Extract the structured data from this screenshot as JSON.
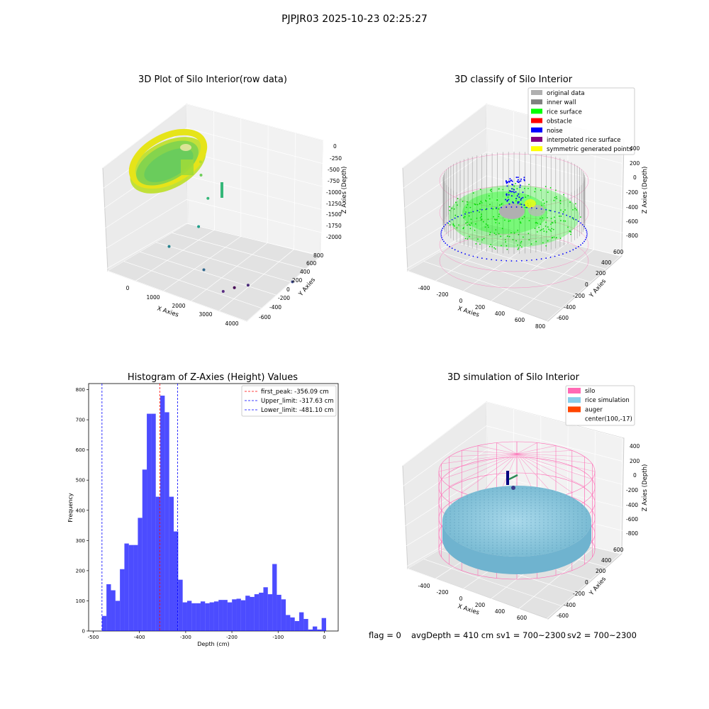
{
  "suptitle": "PJPJR03 2025-10-23 02:25:27",
  "footer": {
    "flag": "flag = 0",
    "avg": "avgDepth = 410 cm",
    "sv1": "sv1 = 700~2300",
    "sv2": "sv2 = 700~2300"
  },
  "chart_data": [
    {
      "type": "scatter",
      "projection": "3d",
      "title": "3D Plot of Silo Interior(row data)",
      "xlabel": "X Axies",
      "ylabel": "Y Axies",
      "zlabel": "Z Axies (Depth)",
      "xticks": [
        "0",
        "1000",
        "2000",
        "3000",
        "4000"
      ],
      "yticks": [
        "-600",
        "-400",
        "-200",
        "0",
        "200",
        "400",
        "600",
        "800"
      ],
      "zticks": [
        "0",
        "-250",
        "-500",
        "-750",
        "-1000",
        "-1250",
        "-1500",
        "-1750",
        "-2000"
      ],
      "xlim": [
        -600,
        4200
      ],
      "ylim": [
        -700,
        900
      ],
      "zlim": [
        -2100,
        100
      ],
      "colormap": "viridis",
      "outlier_points": [
        {
          "x": 1050,
          "y": 200,
          "z": -250
        },
        {
          "x": 1150,
          "y": 150,
          "z": -450
        },
        {
          "x": 1650,
          "y": 0,
          "z": -700
        },
        {
          "x": 1500,
          "y": -100,
          "z": -1200
        },
        {
          "x": 1000,
          "y": -400,
          "z": -1500
        },
        {
          "x": 2200,
          "y": -400,
          "z": -1700
        },
        {
          "x": 4050,
          "y": 300,
          "z": -1950
        },
        {
          "x": 3900,
          "y": -500,
          "z": -1600
        },
        {
          "x": 3600,
          "y": -600,
          "z": -1650
        },
        {
          "x": 3300,
          "y": -650,
          "z": -1750
        }
      ]
    },
    {
      "type": "scatter",
      "projection": "3d",
      "title": "3D classify of Silo Interior",
      "xlabel": "X Axies",
      "ylabel": "Y Axies",
      "zlabel": "Z Axies (Depth)",
      "xticks": [
        "-400",
        "-200",
        "0",
        "200",
        "400",
        "600",
        "800"
      ],
      "yticks": [
        "-600",
        "-400",
        "-200",
        "0",
        "200",
        "400",
        "600"
      ],
      "zticks": [
        "400",
        "200",
        "0",
        "-200",
        "-400",
        "-600",
        "-800"
      ],
      "legend": [
        {
          "label": "original data",
          "color": "#b0b0b0"
        },
        {
          "label": "inner wall",
          "color": "#808080"
        },
        {
          "label": "rice surface",
          "color": "#00ff00"
        },
        {
          "label": "obstacle",
          "color": "#ff0000"
        },
        {
          "label": "noise",
          "color": "#0000ff"
        },
        {
          "label": "interpolated rice surface",
          "color": "#800080"
        },
        {
          "label": "symmetric generated points",
          "color": "#ffff00"
        }
      ],
      "legend_location": "upper right"
    },
    {
      "type": "bar",
      "title": "Histogram of Z-Axies (Height) Values",
      "xlabel": "Depth (cm)",
      "ylabel": "Frequency",
      "xlim": [
        -510,
        30
      ],
      "ylim": [
        0,
        820
      ],
      "xticks": [
        -500,
        -400,
        -300,
        -200,
        -100,
        0
      ],
      "yticks": [
        0,
        100,
        200,
        300,
        400,
        500,
        600,
        700,
        800
      ],
      "bin_start": -481.1,
      "bin_width": 9.7,
      "bar_color": "#0000ff",
      "bar_alpha": 0.7,
      "values": [
        50,
        155,
        135,
        100,
        205,
        290,
        285,
        285,
        375,
        535,
        720,
        720,
        445,
        780,
        725,
        445,
        330,
        170,
        95,
        100,
        92,
        92,
        98,
        92,
        95,
        98,
        103,
        103,
        95,
        105,
        107,
        102,
        117,
        113,
        122,
        127,
        145,
        122,
        222,
        120,
        105,
        53,
        45,
        33,
        62,
        40,
        5,
        15,
        5,
        43
      ],
      "vlines": [
        {
          "label": "first_peak: -356.09 cm",
          "x": -356.09,
          "color": "#ff0000"
        },
        {
          "label": "Upper_limit: -317.63 cm",
          "x": -317.63,
          "color": "#0000ff"
        },
        {
          "label": "Lower_limit: -481.10 cm",
          "x": -481.1,
          "color": "#0000ff"
        }
      ],
      "legend_location": "upper right"
    },
    {
      "type": "scatter",
      "projection": "3d",
      "title": "3D simulation of Silo Interior",
      "xlabel": "X Axies",
      "ylabel": "Y Axies",
      "zlabel": "Z Axies (Depth)",
      "xticks": [
        "-400",
        "-200",
        "0",
        "200",
        "400",
        "600"
      ],
      "yticks": [
        "-600",
        "-400",
        "-200",
        "0",
        "200",
        "400",
        "600"
      ],
      "zticks": [
        "400",
        "200",
        "0",
        "-200",
        "-400",
        "-600",
        "-800"
      ],
      "legend": [
        {
          "label": "silo",
          "color": "#ff69b4"
        },
        {
          "label": "rice simulation",
          "color": "#87ceeb"
        },
        {
          "label": "auger",
          "color": "#ff4500"
        },
        {
          "label": "center(100,-17)",
          "color": ""
        }
      ],
      "legend_location": "upper right"
    }
  ]
}
